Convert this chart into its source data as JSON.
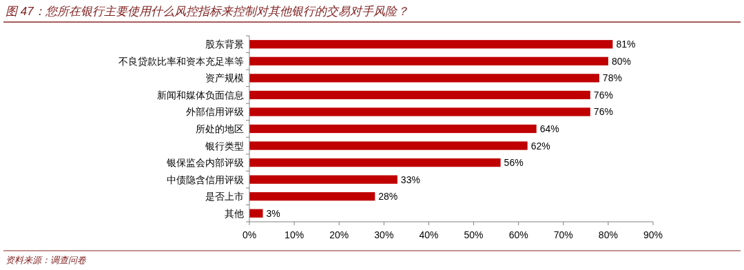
{
  "chart_data": {
    "type": "bar",
    "orientation": "horizontal",
    "title": "图 47：您所在银行主要使用什么风控指标来控制对其他银行的交易对手风险？",
    "annotations": [
      "资料来源：调查问卷"
    ],
    "categories": [
      "股东背景",
      "不良贷款比率和资本充足率等",
      "资产规模",
      "新闻和媒体负面信息",
      "外部信用评级",
      "所处的地区",
      "银行类型",
      "银保监会内部评级",
      "中债隐含信用评级",
      "是否上市",
      "其他"
    ],
    "values": [
      81,
      80,
      78,
      76,
      76,
      64,
      62,
      56,
      33,
      28,
      3
    ],
    "value_labels": [
      "81%",
      "80%",
      "78%",
      "76%",
      "76%",
      "64%",
      "62%",
      "56%",
      "33%",
      "28%",
      "3%"
    ],
    "color": "#c00000",
    "xlim": [
      0,
      90
    ],
    "xticks": [
      {
        "value": 0,
        "label": "0%"
      },
      {
        "value": 10,
        "label": "10%"
      },
      {
        "value": 20,
        "label": "20%"
      },
      {
        "value": 30,
        "label": "30%"
      },
      {
        "value": 40,
        "label": "40%"
      },
      {
        "value": 50,
        "label": "50%"
      },
      {
        "value": 60,
        "label": "60%"
      },
      {
        "value": 70,
        "label": "70%"
      },
      {
        "value": 80,
        "label": "80%"
      },
      {
        "value": 90,
        "label": "90%"
      }
    ]
  }
}
